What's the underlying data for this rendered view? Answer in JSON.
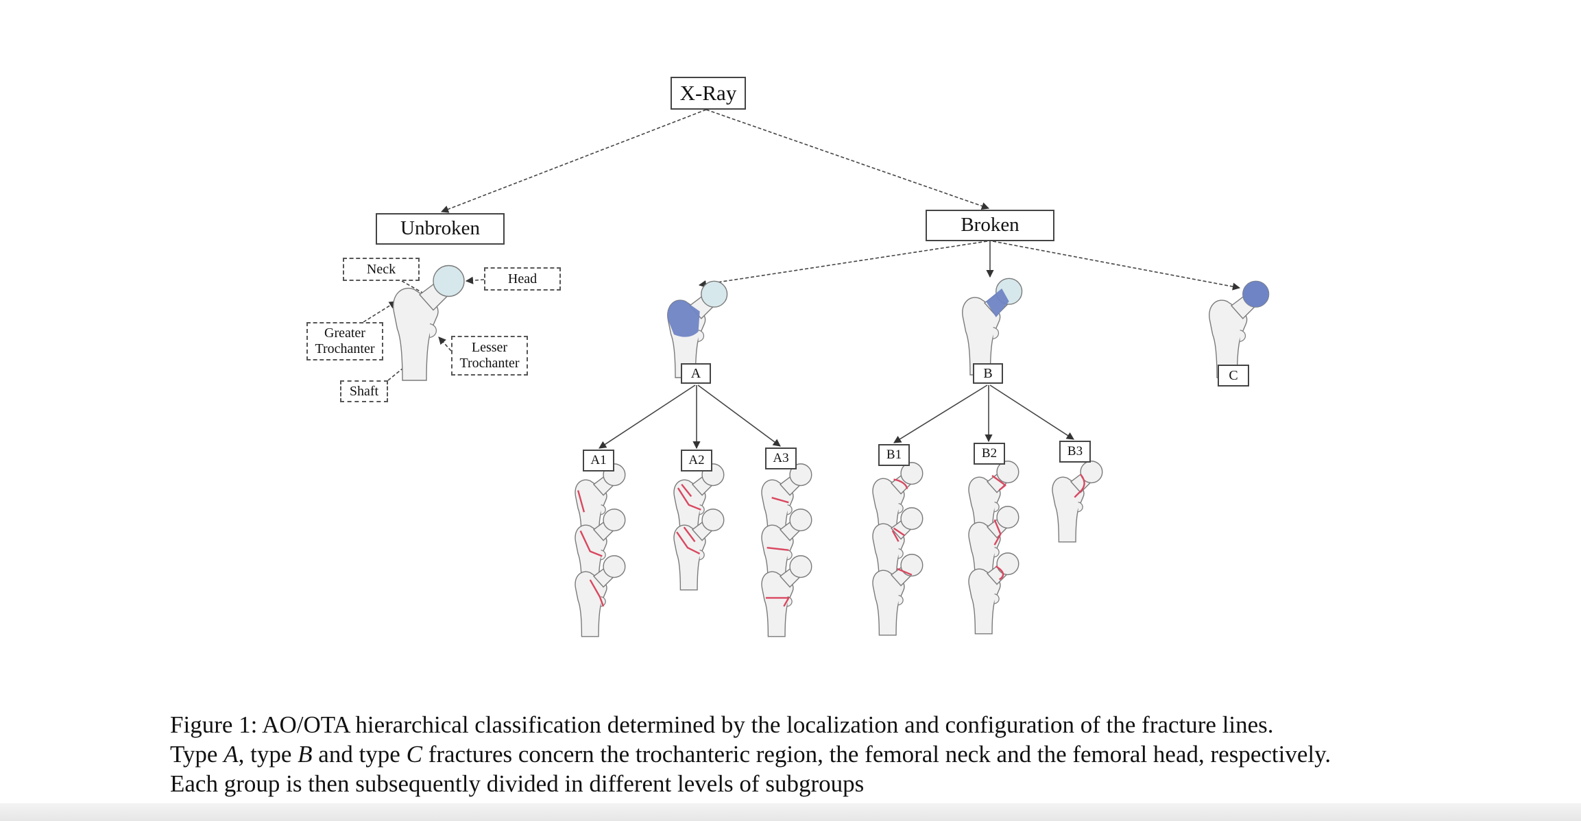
{
  "diagram": {
    "root": "X-Ray",
    "unbroken": {
      "label": "Unbroken",
      "parts": {
        "neck": "Neck",
        "head": "Head",
        "greater_trochanter": "Greater Trochanter",
        "lesser_trochanter": "Lesser Trochanter",
        "shaft": "Shaft"
      }
    },
    "broken": {
      "label": "Broken",
      "types": [
        {
          "label": "A",
          "subgroups": [
            "A1",
            "A2",
            "A3"
          ]
        },
        {
          "label": "B",
          "subgroups": [
            "B1",
            "B2",
            "B3"
          ]
        },
        {
          "label": "C",
          "subgroups": []
        }
      ]
    },
    "colors": {
      "highlight": "#6f84c4",
      "fracture_line": "#d9475f",
      "bone": "#f1f1f1",
      "bone_outline": "#7a7a7a",
      "head_tint": "#d7e8ec"
    }
  },
  "caption": {
    "prefix": "Figure 1: AO/OTA hierarchical classification determined by the localization and configuration of the fracture lines.",
    "line2_a": "Type ",
    "type_a": "A",
    "line2_b": ", type ",
    "type_b": "B",
    "line2_c": " and type ",
    "type_c": "C",
    "line2_d": " fractures concern the trochanteric region, the femoral neck and the femoral head, respectively.",
    "line3": "Each group is then subsequently divided in different levels of subgroups"
  }
}
